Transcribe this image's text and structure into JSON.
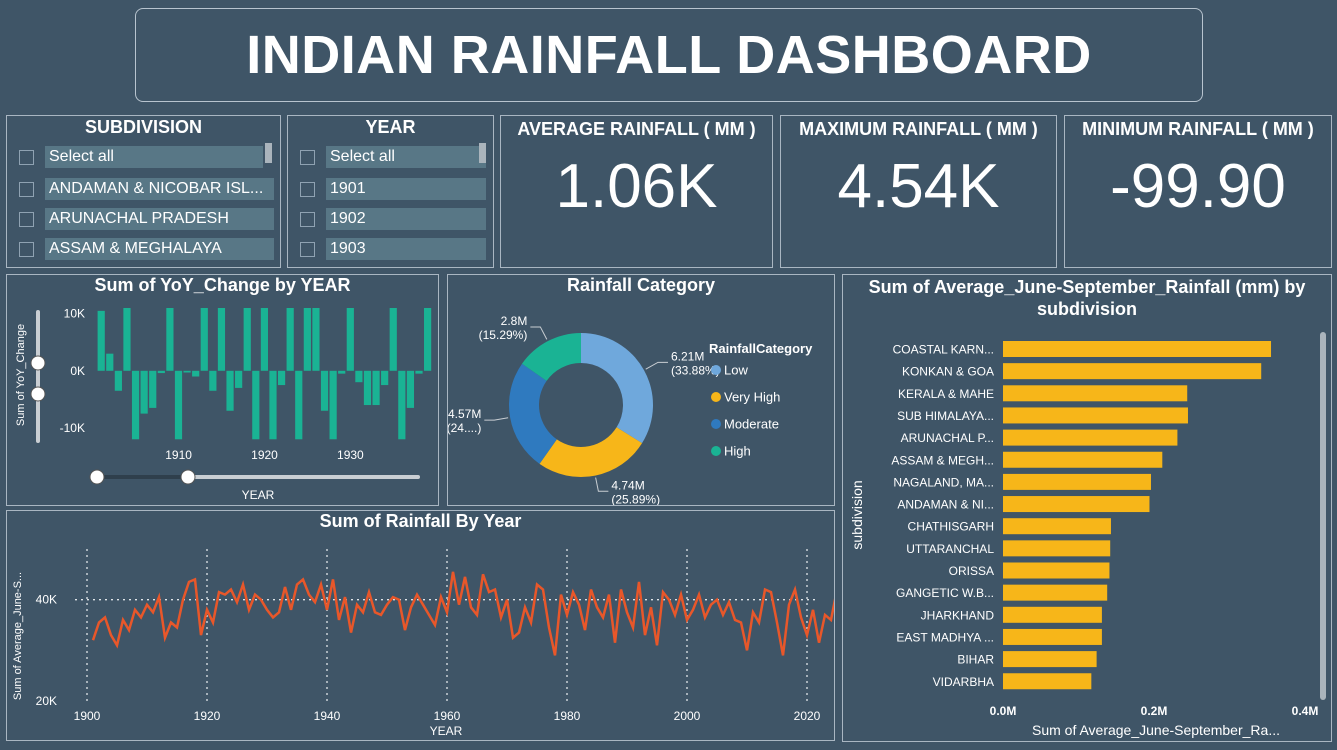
{
  "dashboard": {
    "title": "INDIAN RAINFALL DASHBOARD"
  },
  "slicers": {
    "subdivision": {
      "title": "SUBDIVISION",
      "items": [
        "Select all",
        "ANDAMAN & NICOBAR ISL...",
        "ARUNACHAL PRADESH",
        "ASSAM & MEGHALAYA"
      ]
    },
    "year": {
      "title": "YEAR",
      "items": [
        "Select all",
        "1901",
        "1902",
        "1903"
      ]
    }
  },
  "kpis": {
    "average": {
      "label": "AVERAGE RAINFALL ( MM )",
      "value": "1.06K"
    },
    "maximum": {
      "label": "MAXIMUM RAINFALL ( MM )",
      "value": "4.54K"
    },
    "minimum": {
      "label": "MINIMUM RAINFALL ( MM )",
      "value": "-99.90"
    }
  },
  "colors": {
    "background": "#3f5567",
    "teal": "#1ab394",
    "orange": "#e8572a",
    "gold": "#f7b619"
  },
  "chart_data": [
    {
      "id": "yoy",
      "type": "bar",
      "title": "Sum of YoY_Change by YEAR",
      "xlabel": "YEAR",
      "ylabel": "Sum of YoY_Change",
      "ylim": [
        -13000,
        11000
      ],
      "yticks": [
        {
          "value": 10000,
          "label": "10K"
        },
        {
          "value": 0,
          "label": "0K"
        },
        {
          "value": -10000,
          "label": "-10K"
        }
      ],
      "xticks": [
        1910,
        1920,
        1930
      ],
      "x_range": [
        1901,
        1939
      ],
      "x": [
        1901,
        1902,
        1903,
        1904,
        1905,
        1906,
        1907,
        1908,
        1909,
        1910,
        1911,
        1912,
        1913,
        1914,
        1915,
        1916,
        1917,
        1918,
        1919,
        1920,
        1921,
        1922,
        1923,
        1924,
        1925,
        1926,
        1927,
        1928,
        1929,
        1930,
        1931,
        1932,
        1933,
        1934,
        1935,
        1936,
        1937,
        1938,
        1939
      ],
      "values": [
        10500,
        3000,
        -3500,
        11000,
        -12000,
        -7500,
        -6500,
        -400,
        11000,
        -12000,
        -300,
        -1000,
        11000,
        -3500,
        11000,
        -7000,
        -3000,
        11000,
        -12000,
        11000,
        -12000,
        -2500,
        11000,
        -12000,
        11000,
        11000,
        -7000,
        -12000,
        -500,
        11000,
        -2000,
        -6000,
        -6000,
        -2500,
        11000,
        -12000,
        -6500,
        -500,
        11000
      ]
    },
    {
      "id": "category",
      "type": "pie",
      "title": "Rainfall Category",
      "legend_title": "RainfallCategory",
      "legend_position": "right",
      "slices": [
        {
          "name": "Low",
          "value": 6.21,
          "label": "6.21M",
          "pct_label": "(33.88%)",
          "color": "#6fa8dc"
        },
        {
          "name": "Very High",
          "value": 4.74,
          "label": "4.74M",
          "pct_label": "(25.89%)",
          "color": "#f7b619"
        },
        {
          "name": "Moderate",
          "value": 4.57,
          "label": "4.57M",
          "pct_label": "(24....)",
          "color": "#2f7abf"
        },
        {
          "name": "High",
          "value": 2.8,
          "label": "2.8M",
          "pct_label": "(15.29%)",
          "color": "#1ab394"
        }
      ]
    },
    {
      "id": "byyear",
      "type": "line",
      "title": "Sum of Rainfall By Year",
      "xlabel": "YEAR",
      "ylabel": "Sum of Average_June-S...",
      "ylim": [
        20000,
        50000
      ],
      "yticks": [
        {
          "value": 40000,
          "label": "40K"
        },
        {
          "value": 20000,
          "label": "20K"
        }
      ],
      "xticks": [
        1900,
        1920,
        1940,
        1960,
        1980,
        2000,
        2020
      ],
      "x_range": [
        1898,
        2022
      ],
      "x_start": 1901,
      "values": [
        32000,
        35500,
        36500,
        33000,
        31000,
        36000,
        34000,
        38000,
        36500,
        39000,
        37500,
        40500,
        32500,
        35500,
        34500,
        40000,
        43500,
        44000,
        33000,
        38000,
        35500,
        41500,
        41000,
        42000,
        39500,
        43000,
        38000,
        41000,
        40000,
        38000,
        36500,
        37500,
        42500,
        38000,
        43000,
        44000,
        41000,
        39500,
        43000,
        38000,
        44000,
        36000,
        40500,
        33500,
        39000,
        37500,
        41500,
        37500,
        37000,
        39000,
        40500,
        40000,
        34000,
        38500,
        41000,
        39000,
        37000,
        35000,
        40500,
        37500,
        45500,
        39000,
        44500,
        38500,
        37000,
        45000,
        41500,
        42000,
        36500,
        40000,
        32500,
        33500,
        38500,
        35500,
        43000,
        42000,
        34500,
        29000,
        41000,
        37000,
        41500,
        39000,
        34000,
        42000,
        38500,
        36500,
        41000,
        31500,
        42000,
        37500,
        34500,
        43500,
        33000,
        38500,
        31000,
        41500,
        40000,
        37000,
        41000,
        36000,
        38000,
        41000,
        36500,
        39000,
        40000,
        37000,
        39500,
        36000,
        35500,
        30000,
        37500,
        35500,
        42000,
        41500,
        35500,
        29000,
        39000,
        42000,
        36500,
        33000,
        38000,
        31500,
        37000,
        36000,
        42000,
        42000,
        38000
      ],
      "reference_line": 40000
    },
    {
      "id": "bysubdivision",
      "type": "bar",
      "orientation": "horizontal",
      "title": "Sum of Average_June-September_Rainfall (mm) by subdivision",
      "xlabel": "Sum of Average_June-September_Ra...",
      "ylabel": "subdivision",
      "xlim": [
        0,
        0.4
      ],
      "xticks": [
        {
          "value": 0,
          "label": "0.0M"
        },
        {
          "value": 0.2,
          "label": "0.2M"
        },
        {
          "value": 0.4,
          "label": "0.4M"
        }
      ],
      "categories": [
        "COASTAL KARN...",
        "KONKAN & GOA",
        "KERALA & MAHE",
        "SUB HIMALAYA...",
        "ARUNACHAL P...",
        "ASSAM & MEGH...",
        "NAGALAND, MA...",
        "ANDAMAN & NI...",
        "CHATHISGARH",
        "UTTARANCHAL",
        "ORISSA",
        "GANGETIC W.B...",
        "JHARKHAND",
        "EAST MADHYA ...",
        "BIHAR",
        "VIDARBHA"
      ],
      "values": [
        0.355,
        0.342,
        0.244,
        0.245,
        0.231,
        0.211,
        0.196,
        0.194,
        0.143,
        0.142,
        0.141,
        0.138,
        0.131,
        0.131,
        0.124,
        0.117
      ]
    }
  ]
}
